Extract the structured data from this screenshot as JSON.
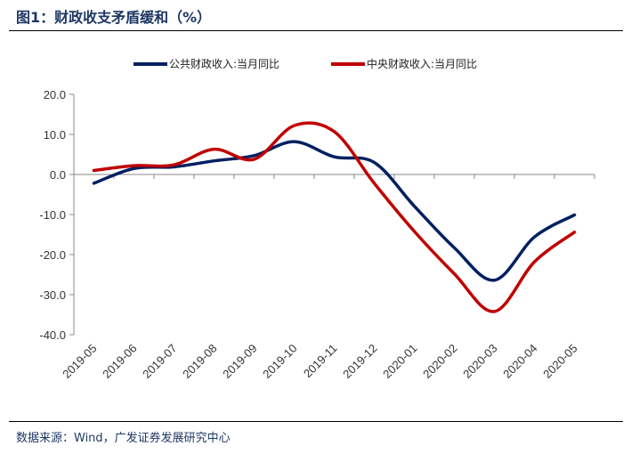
{
  "title": "图1：财政收支矛盾缓和（%）",
  "source": "数据来源：Wind，广发证券发展研究中心",
  "chart_data": {
    "type": "line",
    "categories": [
      "2019-05",
      "2019-06",
      "2019-07",
      "2019-08",
      "2019-09",
      "2019-10",
      "2019-11",
      "2019-12",
      "2020-01",
      "2020-02",
      "2020-03",
      "2020-04",
      "2020-05"
    ],
    "ylim": [
      -40,
      20
    ],
    "yticks": [
      "20.0",
      "10.0",
      "0.0",
      "-10.0",
      "-20.0",
      "-30.0",
      "-40.0"
    ],
    "ytick_values": [
      20,
      10,
      0,
      -10,
      -20,
      -30,
      -40
    ],
    "legend_position": "top",
    "grid": false,
    "smooth": true,
    "series": [
      {
        "name": "公共财政收入:当月同比",
        "color": "#002060",
        "values": [
          -2.2,
          1.5,
          1.9,
          3.4,
          4.7,
          8.2,
          4.4,
          3.0,
          -7.9,
          -18.3,
          -26.4,
          -15.6,
          -10.1
        ]
      },
      {
        "name": "中央财政收入:当月同比",
        "color": "#c00000",
        "values": [
          1.0,
          2.2,
          2.4,
          6.3,
          3.8,
          12.2,
          10.7,
          -2.2,
          -14.2,
          -24.8,
          -34.2,
          -21.8,
          -14.4
        ]
      }
    ]
  }
}
